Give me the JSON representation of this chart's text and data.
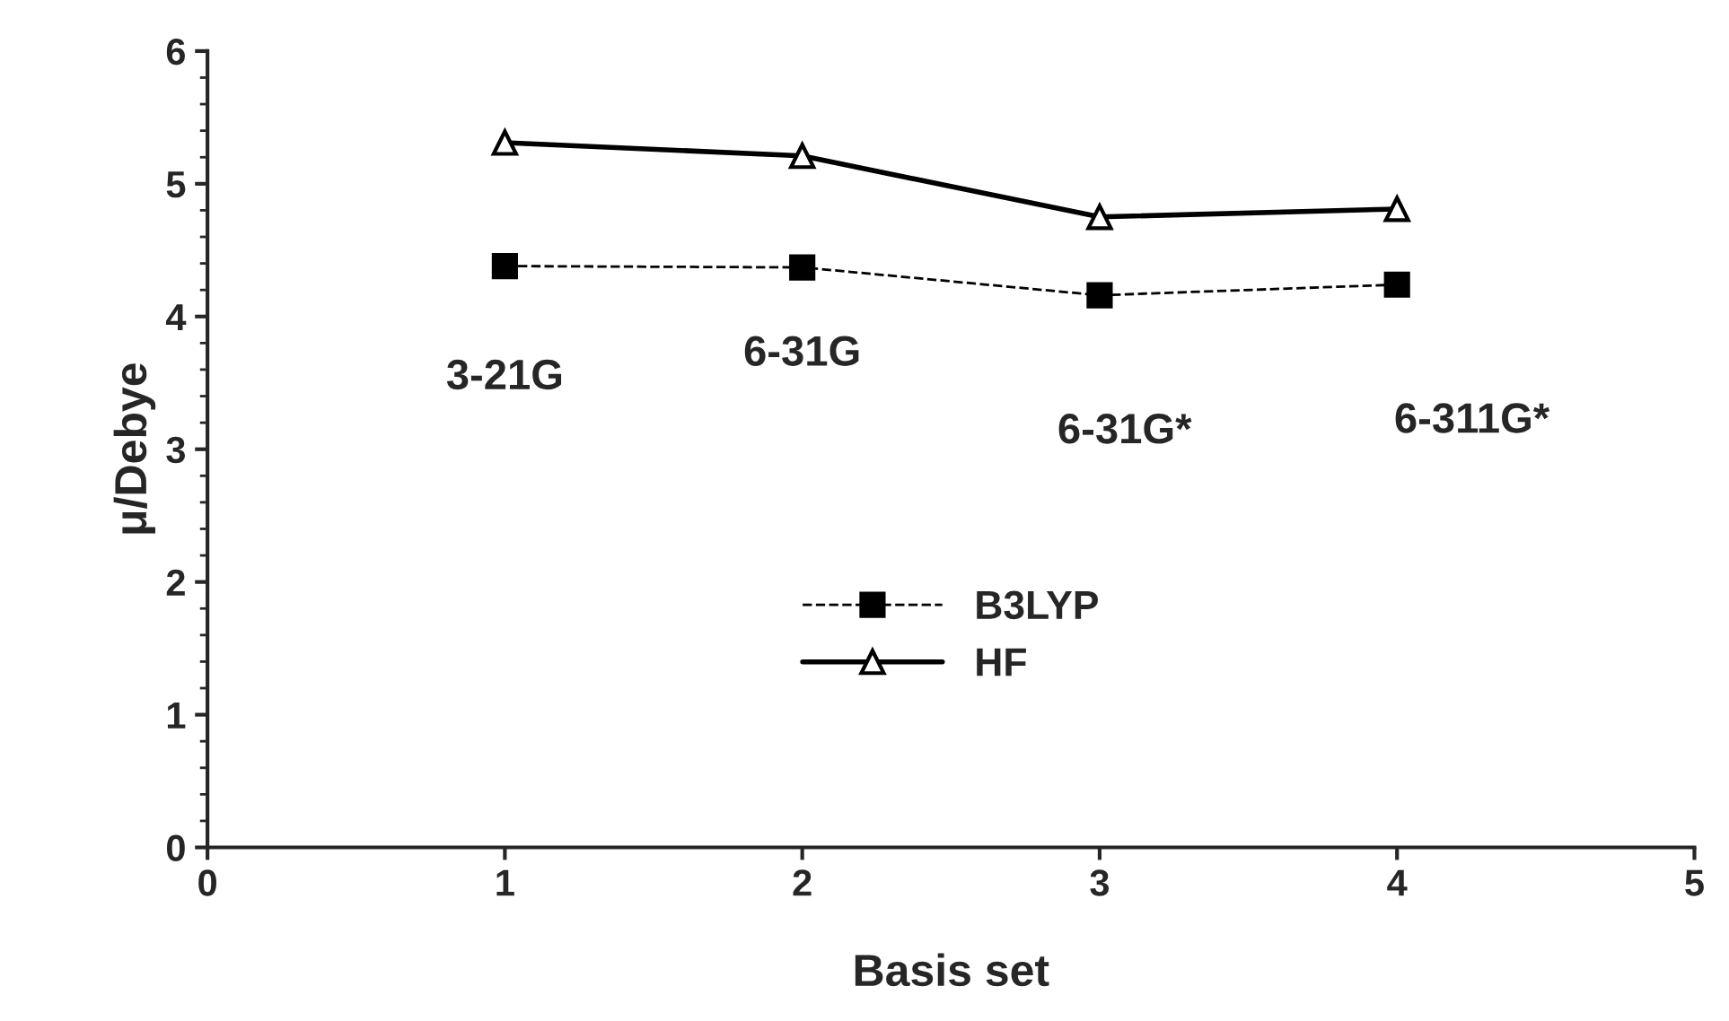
{
  "chart_data": {
    "type": "line",
    "xlabel": "Basis set",
    "ylabel": "μ/Debye",
    "x": [
      1,
      2,
      3,
      4
    ],
    "series": [
      {
        "name": "B3LYP",
        "color": "#000000",
        "values": [
          4.38,
          4.37,
          4.16,
          4.24
        ],
        "marker": "square",
        "line_style": "dashed"
      },
      {
        "name": "HF",
        "color": "#000000",
        "values": [
          5.31,
          5.21,
          4.75,
          4.81
        ],
        "marker": "triangle",
        "line_style": "solid"
      }
    ],
    "annotations": [
      "3-21G",
      "6-31G",
      "6-31G*",
      "6-311G*"
    ],
    "xlim": [
      0,
      5
    ],
    "xticks": [
      0,
      1,
      2,
      3,
      4,
      5
    ],
    "ylim": [
      0,
      6
    ],
    "yticks": [
      0,
      1,
      2,
      3,
      4,
      5,
      6
    ],
    "grid": false,
    "legend": "bottom"
  }
}
